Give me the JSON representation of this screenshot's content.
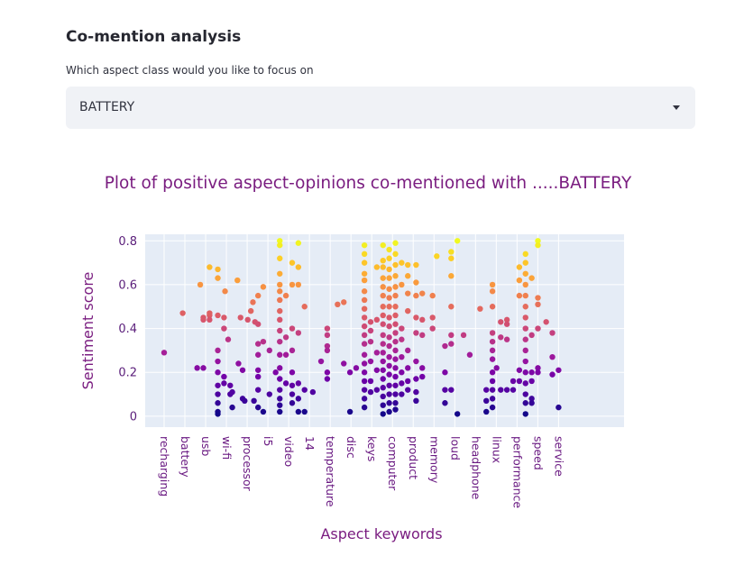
{
  "section": {
    "title": "Co-mention analysis"
  },
  "selector": {
    "label": "Which aspect class would you like to focus on",
    "value": "BATTERY"
  },
  "chart_data": {
    "type": "scatter",
    "title": "Plot of positive aspect-opinions co-mentioned with .....BATTERY",
    "xlabel": "Aspect keywords",
    "ylabel": "Sentiment score",
    "ylim": [
      -0.05,
      0.83
    ],
    "yticks": [
      0,
      0.2,
      0.4,
      0.6,
      0.8
    ],
    "grid": true,
    "colorscale": "plasma",
    "colorscale_stops": [
      "#0d0887",
      "#46039f",
      "#7201a8",
      "#9c179e",
      "#bd3786",
      "#d8576b",
      "#ed7953",
      "#fb9f3a",
      "#fdca26",
      "#f0f921"
    ],
    "labeled_categories": [
      "recharging",
      "battery",
      "usb",
      "wi-fi",
      "processor",
      "i5",
      "video",
      "14",
      "temperature",
      "disc",
      "keys",
      "computer",
      "product",
      "memory",
      "loud",
      "headphone",
      "linux",
      "performance",
      "speed",
      "service"
    ],
    "points": [
      [
        0,
        0.29
      ],
      [
        0.9,
        0.47
      ],
      [
        1.6,
        0.22
      ],
      [
        1.9,
        0.22
      ],
      [
        1.75,
        0.6
      ],
      [
        1.9,
        0.44
      ],
      [
        1.9,
        0.45
      ],
      [
        2.2,
        0.68
      ],
      [
        2.2,
        0.46
      ],
      [
        2.2,
        0.44
      ],
      [
        2.2,
        0.47
      ],
      [
        2.6,
        0.67
      ],
      [
        2.6,
        0.63
      ],
      [
        2.6,
        0.46
      ],
      [
        2.6,
        0.3
      ],
      [
        2.6,
        0.25
      ],
      [
        2.6,
        0.2
      ],
      [
        2.6,
        0.14
      ],
      [
        2.6,
        0.1
      ],
      [
        2.6,
        0.06
      ],
      [
        2.6,
        0.02
      ],
      [
        2.6,
        0.01
      ],
      [
        2.9,
        0.45
      ],
      [
        2.95,
        0.57
      ],
      [
        2.9,
        0.4
      ],
      [
        2.9,
        0.18
      ],
      [
        2.9,
        0.15
      ],
      [
        3.1,
        0.35
      ],
      [
        3.2,
        0.14
      ],
      [
        3.2,
        0.1
      ],
      [
        3.3,
        0.04
      ],
      [
        3.3,
        0.11
      ],
      [
        3.55,
        0.62
      ],
      [
        3.6,
        0.24
      ],
      [
        3.7,
        0.45
      ],
      [
        3.8,
        0.21
      ],
      [
        3.8,
        0.08
      ],
      [
        3.9,
        0.07
      ],
      [
        4.05,
        0.44
      ],
      [
        4.2,
        0.48
      ],
      [
        4.3,
        0.52
      ],
      [
        4.35,
        0.07
      ],
      [
        4.4,
        0.43
      ],
      [
        4.55,
        0.55
      ],
      [
        4.55,
        0.42
      ],
      [
        4.55,
        0.33
      ],
      [
        4.55,
        0.28
      ],
      [
        4.55,
        0.21
      ],
      [
        4.55,
        0.18
      ],
      [
        4.55,
        0.12
      ],
      [
        4.55,
        0.04
      ],
      [
        4.8,
        0.59
      ],
      [
        4.8,
        0.34
      ],
      [
        4.8,
        0.02
      ],
      [
        5.1,
        0.3
      ],
      [
        5.1,
        0.1
      ],
      [
        5.4,
        0.2
      ],
      [
        5.6,
        0.8
      ],
      [
        5.6,
        0.78
      ],
      [
        5.6,
        0.72
      ],
      [
        5.6,
        0.65
      ],
      [
        5.6,
        0.6
      ],
      [
        5.6,
        0.57
      ],
      [
        5.6,
        0.53
      ],
      [
        5.6,
        0.48
      ],
      [
        5.6,
        0.44
      ],
      [
        5.6,
        0.39
      ],
      [
        5.6,
        0.34
      ],
      [
        5.6,
        0.28
      ],
      [
        5.6,
        0.22
      ],
      [
        5.6,
        0.17
      ],
      [
        5.6,
        0.12
      ],
      [
        5.6,
        0.08
      ],
      [
        5.6,
        0.05
      ],
      [
        5.6,
        0.02
      ],
      [
        5.9,
        0.55
      ],
      [
        5.9,
        0.36
      ],
      [
        5.9,
        0.28
      ],
      [
        5.9,
        0.15
      ],
      [
        6.2,
        0.7
      ],
      [
        6.2,
        0.6
      ],
      [
        6.2,
        0.4
      ],
      [
        6.2,
        0.3
      ],
      [
        6.2,
        0.2
      ],
      [
        6.2,
        0.14
      ],
      [
        6.2,
        0.1
      ],
      [
        6.2,
        0.06
      ],
      [
        6.5,
        0.79
      ],
      [
        6.5,
        0.68
      ],
      [
        6.5,
        0.6
      ],
      [
        6.5,
        0.38
      ],
      [
        6.5,
        0.15
      ],
      [
        6.5,
        0.08
      ],
      [
        6.5,
        0.02
      ],
      [
        6.8,
        0.5
      ],
      [
        6.8,
        0.12
      ],
      [
        6.8,
        0.02
      ],
      [
        7.2,
        0.11
      ],
      [
        7.6,
        0.25
      ],
      [
        7.9,
        0.4
      ],
      [
        7.9,
        0.37
      ],
      [
        7.9,
        0.32
      ],
      [
        7.9,
        0.3
      ],
      [
        7.9,
        0.2
      ],
      [
        7.9,
        0.17
      ],
      [
        8.4,
        0.51
      ],
      [
        8.7,
        0.24
      ],
      [
        8.7,
        0.52
      ],
      [
        9.0,
        0.02
      ],
      [
        9.0,
        0.2
      ],
      [
        9.3,
        0.22
      ],
      [
        9.7,
        0.78
      ],
      [
        9.7,
        0.74
      ],
      [
        9.7,
        0.7
      ],
      [
        9.7,
        0.65
      ],
      [
        9.7,
        0.62
      ],
      [
        9.7,
        0.57
      ],
      [
        9.7,
        0.53
      ],
      [
        9.7,
        0.49
      ],
      [
        9.7,
        0.45
      ],
      [
        9.7,
        0.41
      ],
      [
        9.7,
        0.37
      ],
      [
        9.7,
        0.33
      ],
      [
        9.7,
        0.28
      ],
      [
        9.7,
        0.24
      ],
      [
        9.7,
        0.2
      ],
      [
        9.7,
        0.16
      ],
      [
        9.7,
        0.12
      ],
      [
        9.7,
        0.08
      ],
      [
        9.7,
        0.04
      ],
      [
        10.0,
        0.43
      ],
      [
        10.0,
        0.39
      ],
      [
        10.0,
        0.34
      ],
      [
        10.0,
        0.25
      ],
      [
        10.0,
        0.16
      ],
      [
        10.0,
        0.11
      ],
      [
        10.3,
        0.68
      ],
      [
        10.3,
        0.44
      ],
      [
        10.3,
        0.29
      ],
      [
        10.3,
        0.21
      ],
      [
        10.3,
        0.12
      ],
      [
        10.6,
        0.78
      ],
      [
        10.6,
        0.71
      ],
      [
        10.6,
        0.68
      ],
      [
        10.6,
        0.63
      ],
      [
        10.6,
        0.59
      ],
      [
        10.6,
        0.55
      ],
      [
        10.6,
        0.5
      ],
      [
        10.6,
        0.46
      ],
      [
        10.6,
        0.42
      ],
      [
        10.6,
        0.37
      ],
      [
        10.6,
        0.33
      ],
      [
        10.6,
        0.29
      ],
      [
        10.6,
        0.25
      ],
      [
        10.6,
        0.21
      ],
      [
        10.6,
        0.17
      ],
      [
        10.6,
        0.13
      ],
      [
        10.6,
        0.09
      ],
      [
        10.6,
        0.05
      ],
      [
        10.6,
        0.01
      ],
      [
        10.9,
        0.76
      ],
      [
        10.9,
        0.72
      ],
      [
        10.9,
        0.67
      ],
      [
        10.9,
        0.63
      ],
      [
        10.9,
        0.58
      ],
      [
        10.9,
        0.54
      ],
      [
        10.9,
        0.5
      ],
      [
        10.9,
        0.45
      ],
      [
        10.9,
        0.41
      ],
      [
        10.9,
        0.36
      ],
      [
        10.9,
        0.32
      ],
      [
        10.9,
        0.27
      ],
      [
        10.9,
        0.23
      ],
      [
        10.9,
        0.19
      ],
      [
        10.9,
        0.14
      ],
      [
        10.9,
        0.1
      ],
      [
        10.9,
        0.06
      ],
      [
        10.9,
        0.02
      ],
      [
        11.2,
        0.79
      ],
      [
        11.2,
        0.74
      ],
      [
        11.2,
        0.69
      ],
      [
        11.2,
        0.64
      ],
      [
        11.2,
        0.59
      ],
      [
        11.2,
        0.55
      ],
      [
        11.2,
        0.5
      ],
      [
        11.2,
        0.46
      ],
      [
        11.2,
        0.42
      ],
      [
        11.2,
        0.38
      ],
      [
        11.2,
        0.34
      ],
      [
        11.2,
        0.3
      ],
      [
        11.2,
        0.26
      ],
      [
        11.2,
        0.22
      ],
      [
        11.2,
        0.18
      ],
      [
        11.2,
        0.14
      ],
      [
        11.2,
        0.1
      ],
      [
        11.2,
        0.06
      ],
      [
        11.2,
        0.03
      ],
      [
        11.5,
        0.7
      ],
      [
        11.5,
        0.6
      ],
      [
        11.5,
        0.4
      ],
      [
        11.5,
        0.35
      ],
      [
        11.5,
        0.27
      ],
      [
        11.5,
        0.2
      ],
      [
        11.5,
        0.15
      ],
      [
        11.5,
        0.1
      ],
      [
        11.8,
        0.69
      ],
      [
        11.8,
        0.64
      ],
      [
        11.8,
        0.56
      ],
      [
        11.8,
        0.48
      ],
      [
        11.8,
        0.3
      ],
      [
        11.8,
        0.22
      ],
      [
        11.8,
        0.16
      ],
      [
        11.8,
        0.12
      ],
      [
        12.2,
        0.69
      ],
      [
        12.2,
        0.61
      ],
      [
        12.2,
        0.55
      ],
      [
        12.2,
        0.45
      ],
      [
        12.2,
        0.38
      ],
      [
        12.2,
        0.25
      ],
      [
        12.2,
        0.17
      ],
      [
        12.2,
        0.11
      ],
      [
        12.2,
        0.07
      ],
      [
        12.5,
        0.56
      ],
      [
        12.5,
        0.44
      ],
      [
        12.5,
        0.37
      ],
      [
        12.5,
        0.22
      ],
      [
        12.5,
        0.18
      ],
      [
        13.0,
        0.55
      ],
      [
        13.0,
        0.45
      ],
      [
        13.0,
        0.4
      ],
      [
        13.2,
        0.73
      ],
      [
        13.6,
        0.32
      ],
      [
        13.6,
        0.2
      ],
      [
        13.6,
        0.12
      ],
      [
        13.6,
        0.06
      ],
      [
        13.9,
        0.75
      ],
      [
        13.9,
        0.72
      ],
      [
        13.9,
        0.64
      ],
      [
        13.9,
        0.5
      ],
      [
        13.9,
        0.37
      ],
      [
        13.9,
        0.33
      ],
      [
        13.9,
        0.12
      ],
      [
        14.2,
        0.8
      ],
      [
        14.2,
        0.01
      ],
      [
        14.5,
        0.37
      ],
      [
        14.8,
        0.28
      ],
      [
        15.3,
        0.49
      ],
      [
        15.6,
        0.12
      ],
      [
        15.6,
        0.07
      ],
      [
        15.6,
        0.02
      ],
      [
        15.9,
        0.6
      ],
      [
        15.9,
        0.57
      ],
      [
        15.9,
        0.5
      ],
      [
        15.9,
        0.38
      ],
      [
        15.9,
        0.34
      ],
      [
        15.9,
        0.3
      ],
      [
        15.9,
        0.26
      ],
      [
        15.9,
        0.2
      ],
      [
        15.9,
        0.16
      ],
      [
        15.9,
        0.12
      ],
      [
        15.9,
        0.08
      ],
      [
        15.9,
        0.04
      ],
      [
        16.1,
        0.22
      ],
      [
        16.3,
        0.43
      ],
      [
        16.3,
        0.36
      ],
      [
        16.3,
        0.12
      ],
      [
        16.6,
        0.44
      ],
      [
        16.6,
        0.42
      ],
      [
        16.6,
        0.35
      ],
      [
        16.6,
        0.12
      ],
      [
        16.9,
        0.16
      ],
      [
        16.9,
        0.12
      ],
      [
        17.2,
        0.68
      ],
      [
        17.2,
        0.62
      ],
      [
        17.2,
        0.55
      ],
      [
        17.2,
        0.21
      ],
      [
        17.2,
        0.16
      ],
      [
        17.5,
        0.74
      ],
      [
        17.5,
        0.7
      ],
      [
        17.5,
        0.65
      ],
      [
        17.5,
        0.6
      ],
      [
        17.5,
        0.55
      ],
      [
        17.5,
        0.5
      ],
      [
        17.5,
        0.45
      ],
      [
        17.5,
        0.4
      ],
      [
        17.5,
        0.35
      ],
      [
        17.5,
        0.3
      ],
      [
        17.5,
        0.25
      ],
      [
        17.5,
        0.2
      ],
      [
        17.5,
        0.15
      ],
      [
        17.5,
        0.1
      ],
      [
        17.5,
        0.06
      ],
      [
        17.5,
        0.01
      ],
      [
        17.8,
        0.63
      ],
      [
        17.8,
        0.37
      ],
      [
        17.8,
        0.2
      ],
      [
        17.8,
        0.16
      ],
      [
        17.8,
        0.08
      ],
      [
        17.8,
        0.06
      ],
      [
        18.1,
        0.8
      ],
      [
        18.1,
        0.78
      ],
      [
        18.1,
        0.54
      ],
      [
        18.1,
        0.51
      ],
      [
        18.1,
        0.4
      ],
      [
        18.1,
        0.22
      ],
      [
        18.1,
        0.2
      ],
      [
        18.5,
        0.43
      ],
      [
        18.8,
        0.38
      ],
      [
        18.8,
        0.27
      ],
      [
        18.8,
        0.19
      ],
      [
        19.1,
        0.21
      ],
      [
        19.1,
        0.04
      ]
    ]
  }
}
